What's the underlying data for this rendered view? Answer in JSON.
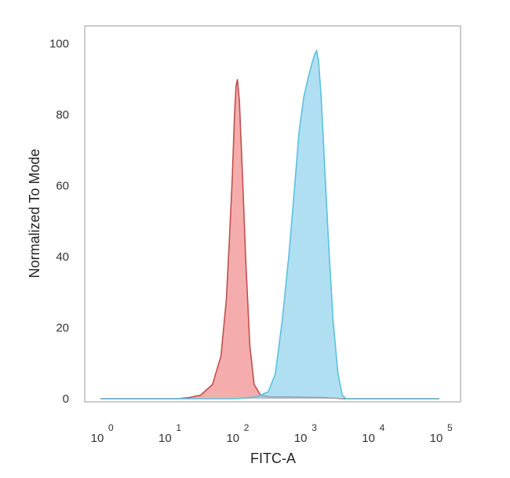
{
  "chart_data": {
    "type": "area",
    "title": "",
    "xlabel": "FITC-A",
    "ylabel": "Normalized To Mode",
    "x_scale": "log",
    "xlim": [
      1,
      100000
    ],
    "ylim": [
      0,
      105
    ],
    "x_ticks": [
      {
        "value": 1,
        "base": "10",
        "exp": "0"
      },
      {
        "value": 10,
        "base": "10",
        "exp": "1"
      },
      {
        "value": 100,
        "base": "10",
        "exp": "2"
      },
      {
        "value": 1000,
        "base": "10",
        "exp": "3"
      },
      {
        "value": 10000,
        "base": "10",
        "exp": "4"
      },
      {
        "value": 100000,
        "base": "10",
        "exp": "5"
      }
    ],
    "y_ticks": [
      0,
      20,
      40,
      60,
      80,
      100
    ],
    "grid": false,
    "legend": "none",
    "series": [
      {
        "color": "#f08080",
        "line_color": "#c0504d",
        "points": [
          [
            1,
            0
          ],
          [
            14,
            0
          ],
          [
            20,
            0.3
          ],
          [
            30,
            1
          ],
          [
            45,
            4
          ],
          [
            60,
            12
          ],
          [
            72,
            28
          ],
          [
            80,
            45
          ],
          [
            88,
            62
          ],
          [
            95,
            80
          ],
          [
            100,
            88
          ],
          [
            105,
            90
          ],
          [
            112,
            84
          ],
          [
            125,
            62
          ],
          [
            140,
            38
          ],
          [
            160,
            15
          ],
          [
            185,
            4
          ],
          [
            230,
            1
          ],
          [
            320,
            0.5
          ],
          [
            600,
            0.5
          ],
          [
            2000,
            0.3
          ],
          [
            4000,
            0
          ],
          [
            100000,
            0
          ]
        ]
      },
      {
        "color": "#87ceeb",
        "line_color": "#5bc0de",
        "points": [
          [
            1,
            0
          ],
          [
            100,
            0
          ],
          [
            200,
            0.5
          ],
          [
            300,
            2
          ],
          [
            380,
            7
          ],
          [
            480,
            22
          ],
          [
            600,
            40
          ],
          [
            720,
            58
          ],
          [
            850,
            75
          ],
          [
            1000,
            85
          ],
          [
            1150,
            90
          ],
          [
            1300,
            94
          ],
          [
            1450,
            97
          ],
          [
            1550,
            98
          ],
          [
            1650,
            95
          ],
          [
            1800,
            85
          ],
          [
            2000,
            68
          ],
          [
            2300,
            45
          ],
          [
            2700,
            22
          ],
          [
            3200,
            7
          ],
          [
            3700,
            1
          ],
          [
            4200,
            0
          ],
          [
            100000,
            0
          ]
        ]
      }
    ]
  }
}
